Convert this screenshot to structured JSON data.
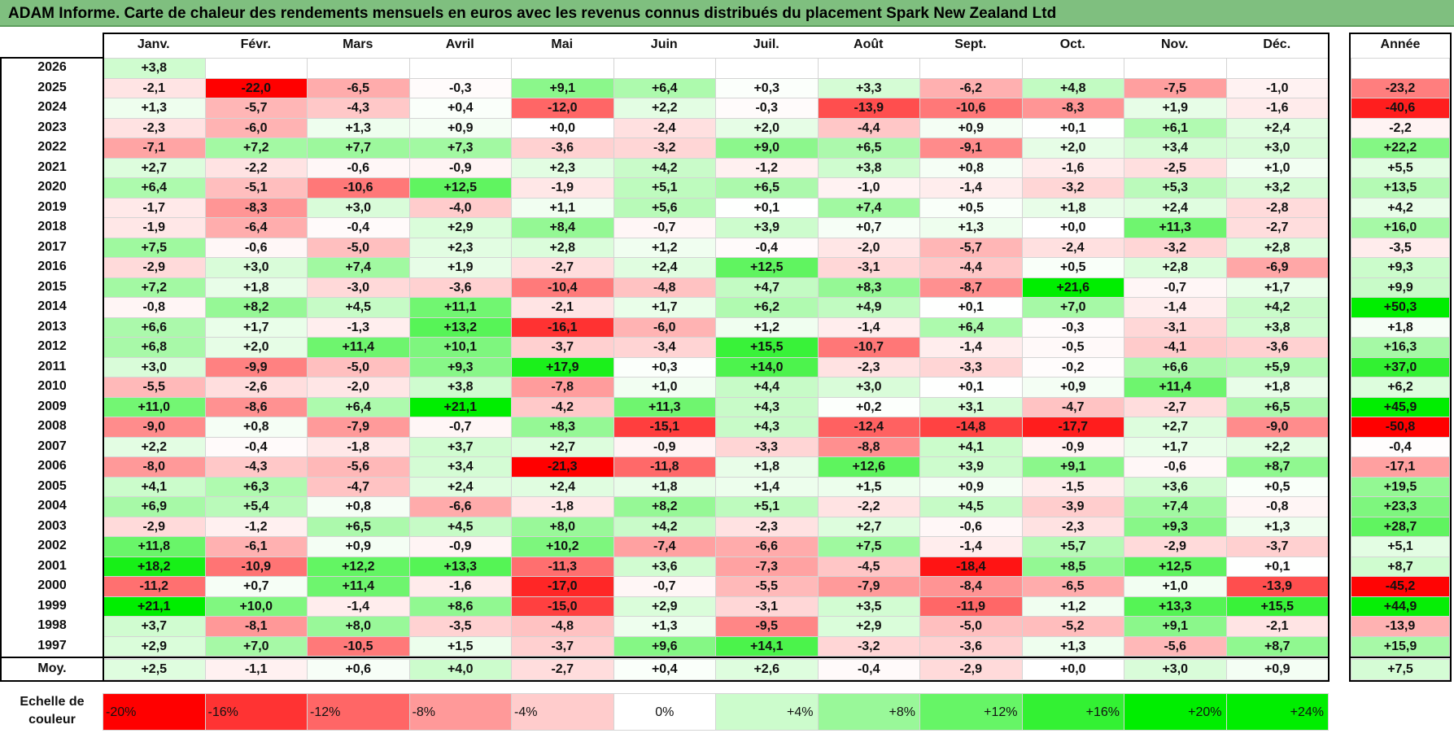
{
  "title": "ADAM Informe. Carte de chaleur des rendements mensuels en euros avec les revenus connus distribués du placement Spark New Zealand Ltd",
  "chart_data": {
    "type": "heatmap",
    "months": [
      "Janv.",
      "Févr.",
      "Mars",
      "Avril",
      "Mai",
      "Juin",
      "Juil.",
      "Août",
      "Sept.",
      "Oct.",
      "Nov.",
      "Déc."
    ],
    "year_header": "Année",
    "avg_label": "Moy.",
    "rows": [
      {
        "year": "2026",
        "months": [
          "+3,8",
          "",
          "",
          "",
          "",
          "",
          "",
          "",
          "",
          "",
          "",
          ""
        ],
        "total": ""
      },
      {
        "year": "2025",
        "months": [
          "-2,1",
          "-22,0",
          "-6,5",
          "-0,3",
          "+9,1",
          "+6,4",
          "+0,3",
          "+3,3",
          "-6,2",
          "+4,8",
          "-7,5",
          "-1,0"
        ],
        "total": "-23,2"
      },
      {
        "year": "2024",
        "months": [
          "+1,3",
          "-5,7",
          "-4,3",
          "+0,4",
          "-12,0",
          "+2,2",
          "-0,3",
          "-13,9",
          "-10,6",
          "-8,3",
          "+1,9",
          "-1,6"
        ],
        "total": "-40,6"
      },
      {
        "year": "2023",
        "months": [
          "-2,3",
          "-6,0",
          "+1,3",
          "+0,9",
          "+0,0",
          "-2,4",
          "+2,0",
          "-4,4",
          "+0,9",
          "+0,1",
          "+6,1",
          "+2,4"
        ],
        "total": "-2,2"
      },
      {
        "year": "2022",
        "months": [
          "-7,1",
          "+7,2",
          "+7,7",
          "+7,3",
          "-3,6",
          "-3,2",
          "+9,0",
          "+6,5",
          "-9,1",
          "+2,0",
          "+3,4",
          "+3,0"
        ],
        "total": "+22,2"
      },
      {
        "year": "2021",
        "months": [
          "+2,7",
          "-2,2",
          "-0,6",
          "-0,9",
          "+2,3",
          "+4,2",
          "-1,2",
          "+3,8",
          "+0,8",
          "-1,6",
          "-2,5",
          "+1,0"
        ],
        "total": "+5,5"
      },
      {
        "year": "2020",
        "months": [
          "+6,4",
          "-5,1",
          "-10,6",
          "+12,5",
          "-1,9",
          "+5,1",
          "+6,5",
          "-1,0",
          "-1,4",
          "-3,2",
          "+5,3",
          "+3,2"
        ],
        "total": "+13,5"
      },
      {
        "year": "2019",
        "months": [
          "-1,7",
          "-8,3",
          "+3,0",
          "-4,0",
          "+1,1",
          "+5,6",
          "+0,1",
          "+7,4",
          "+0,5",
          "+1,8",
          "+2,4",
          "-2,8"
        ],
        "total": "+4,2"
      },
      {
        "year": "2018",
        "months": [
          "-1,9",
          "-6,4",
          "-0,4",
          "+2,9",
          "+8,4",
          "-0,7",
          "+3,9",
          "+0,7",
          "+1,3",
          "+0,0",
          "+11,3",
          "-2,7"
        ],
        "total": "+16,0"
      },
      {
        "year": "2017",
        "months": [
          "+7,5",
          "-0,6",
          "-5,0",
          "+2,3",
          "+2,8",
          "+1,2",
          "-0,4",
          "-2,0",
          "-5,7",
          "-2,4",
          "-3,2",
          "+2,8"
        ],
        "total": "-3,5"
      },
      {
        "year": "2016",
        "months": [
          "-2,9",
          "+3,0",
          "+7,4",
          "+1,9",
          "-2,7",
          "+2,4",
          "+12,5",
          "-3,1",
          "-4,4",
          "+0,5",
          "+2,8",
          "-6,9"
        ],
        "total": "+9,3"
      },
      {
        "year": "2015",
        "months": [
          "+7,2",
          "+1,8",
          "-3,0",
          "-3,6",
          "-10,4",
          "-4,8",
          "+4,7",
          "+8,3",
          "-8,7",
          "+21,6",
          "-0,7",
          "+1,7"
        ],
        "total": "+9,9"
      },
      {
        "year": "2014",
        "months": [
          "-0,8",
          "+8,2",
          "+4,5",
          "+11,1",
          "-2,1",
          "+1,7",
          "+6,2",
          "+4,9",
          "+0,1",
          "+7,0",
          "-1,4",
          "+4,2"
        ],
        "total": "+50,3"
      },
      {
        "year": "2013",
        "months": [
          "+6,6",
          "+1,7",
          "-1,3",
          "+13,2",
          "-16,1",
          "-6,0",
          "+1,2",
          "-1,4",
          "+6,4",
          "-0,3",
          "-3,1",
          "+3,8"
        ],
        "total": "+1,8"
      },
      {
        "year": "2012",
        "months": [
          "+6,8",
          "+2,0",
          "+11,4",
          "+10,1",
          "-3,7",
          "-3,4",
          "+15,5",
          "-10,7",
          "-1,4",
          "-0,5",
          "-4,1",
          "-3,6"
        ],
        "total": "+16,3"
      },
      {
        "year": "2011",
        "months": [
          "+3,0",
          "-9,9",
          "-5,0",
          "+9,3",
          "+17,9",
          "+0,3",
          "+14,0",
          "-2,3",
          "-3,3",
          "-0,2",
          "+6,6",
          "+5,9"
        ],
        "total": "+37,0"
      },
      {
        "year": "2010",
        "months": [
          "-5,5",
          "-2,6",
          "-2,0",
          "+3,8",
          "-7,8",
          "+1,0",
          "+4,4",
          "+3,0",
          "+0,1",
          "+0,9",
          "+11,4",
          "+1,8"
        ],
        "total": "+6,2"
      },
      {
        "year": "2009",
        "months": [
          "+11,0",
          "-8,6",
          "+6,4",
          "+21,1",
          "-4,2",
          "+11,3",
          "+4,3",
          "+0,2",
          "+3,1",
          "-4,7",
          "-2,7",
          "+6,5"
        ],
        "total": "+45,9"
      },
      {
        "year": "2008",
        "months": [
          "-9,0",
          "+0,8",
          "-7,9",
          "-0,7",
          "+8,3",
          "-15,1",
          "+4,3",
          "-12,4",
          "-14,8",
          "-17,7",
          "+2,7",
          "-9,0"
        ],
        "total": "-50,8"
      },
      {
        "year": "2007",
        "months": [
          "+2,2",
          "-0,4",
          "-1,8",
          "+3,7",
          "+2,7",
          "-0,9",
          "-3,3",
          "-8,8",
          "+4,1",
          "-0,9",
          "+1,7",
          "+2,2"
        ],
        "total": "-0,4"
      },
      {
        "year": "2006",
        "months": [
          "-8,0",
          "-4,3",
          "-5,6",
          "+3,4",
          "-21,3",
          "-11,8",
          "+1,8",
          "+12,6",
          "+3,9",
          "+9,1",
          "-0,6",
          "+8,7"
        ],
        "total": "-17,1"
      },
      {
        "year": "2005",
        "months": [
          "+4,1",
          "+6,3",
          "-4,7",
          "+2,4",
          "+2,4",
          "+1,8",
          "+1,4",
          "+1,5",
          "+0,9",
          "-1,5",
          "+3,6",
          "+0,5"
        ],
        "total": "+19,5"
      },
      {
        "year": "2004",
        "months": [
          "+6,9",
          "+5,4",
          "+0,8",
          "-6,6",
          "-1,8",
          "+8,2",
          "+5,1",
          "-2,2",
          "+4,5",
          "-3,9",
          "+7,4",
          "-0,8"
        ],
        "total": "+23,3"
      },
      {
        "year": "2003",
        "months": [
          "-2,9",
          "-1,2",
          "+6,5",
          "+4,5",
          "+8,0",
          "+4,2",
          "-2,3",
          "+2,7",
          "-0,6",
          "-2,3",
          "+9,3",
          "+1,3"
        ],
        "total": "+28,7"
      },
      {
        "year": "2002",
        "months": [
          "+11,8",
          "-6,1",
          "+0,9",
          "-0,9",
          "+10,2",
          "-7,4",
          "-6,6",
          "+7,5",
          "-1,4",
          "+5,7",
          "-2,9",
          "-3,7"
        ],
        "total": "+5,1"
      },
      {
        "year": "2001",
        "months": [
          "+18,2",
          "-10,9",
          "+12,2",
          "+13,3",
          "-11,3",
          "+3,6",
          "-7,3",
          "-4,5",
          "-18,4",
          "+8,5",
          "+12,5",
          "+0,1"
        ],
        "total": "+8,7"
      },
      {
        "year": "2000",
        "months": [
          "-11,2",
          "+0,7",
          "+11,4",
          "-1,6",
          "-17,0",
          "-0,7",
          "-5,5",
          "-7,9",
          "-8,4",
          "-6,5",
          "+1,0",
          "-13,9"
        ],
        "total": "-45,2"
      },
      {
        "year": "1999",
        "months": [
          "+21,1",
          "+10,0",
          "-1,4",
          "+8,6",
          "-15,0",
          "+2,9",
          "-3,1",
          "+3,5",
          "-11,9",
          "+1,2",
          "+13,3",
          "+15,5"
        ],
        "total": "+44,9"
      },
      {
        "year": "1998",
        "months": [
          "+3,7",
          "-8,1",
          "+8,0",
          "-3,5",
          "-4,8",
          "+1,3",
          "-9,5",
          "+2,9",
          "-5,0",
          "-5,2",
          "+9,1",
          "-2,1"
        ],
        "total": "-13,9"
      },
      {
        "year": "1997",
        "months": [
          "+2,9",
          "+7,0",
          "-10,5",
          "+1,5",
          "-3,7",
          "+9,6",
          "+14,1",
          "-3,2",
          "-3,6",
          "+1,3",
          "-5,6",
          "+8,7"
        ],
        "total": "+15,9"
      }
    ],
    "average": {
      "months": [
        "+2,5",
        "-1,1",
        "+0,6",
        "+4,0",
        "-2,7",
        "+0,4",
        "+2,6",
        "-0,4",
        "-2,9",
        "+0,0",
        "+3,0",
        "+0,9"
      ],
      "total": "+7,5"
    },
    "scale": {
      "label_line1": "Echelle de",
      "label_line2": "couleur",
      "steps": [
        "-20%",
        "-16%",
        "-12%",
        "-8%",
        "-4%",
        "0%",
        "+4%",
        "+8%",
        "+12%",
        "+16%",
        "+20%",
        "+24%"
      ],
      "step_values": [
        -20,
        -16,
        -12,
        -8,
        -4,
        0,
        4,
        8,
        12,
        16,
        20,
        24
      ]
    },
    "colors": {
      "negative": "#ff0000",
      "positive": "#00ee00",
      "neutral": "#ffffff"
    }
  }
}
